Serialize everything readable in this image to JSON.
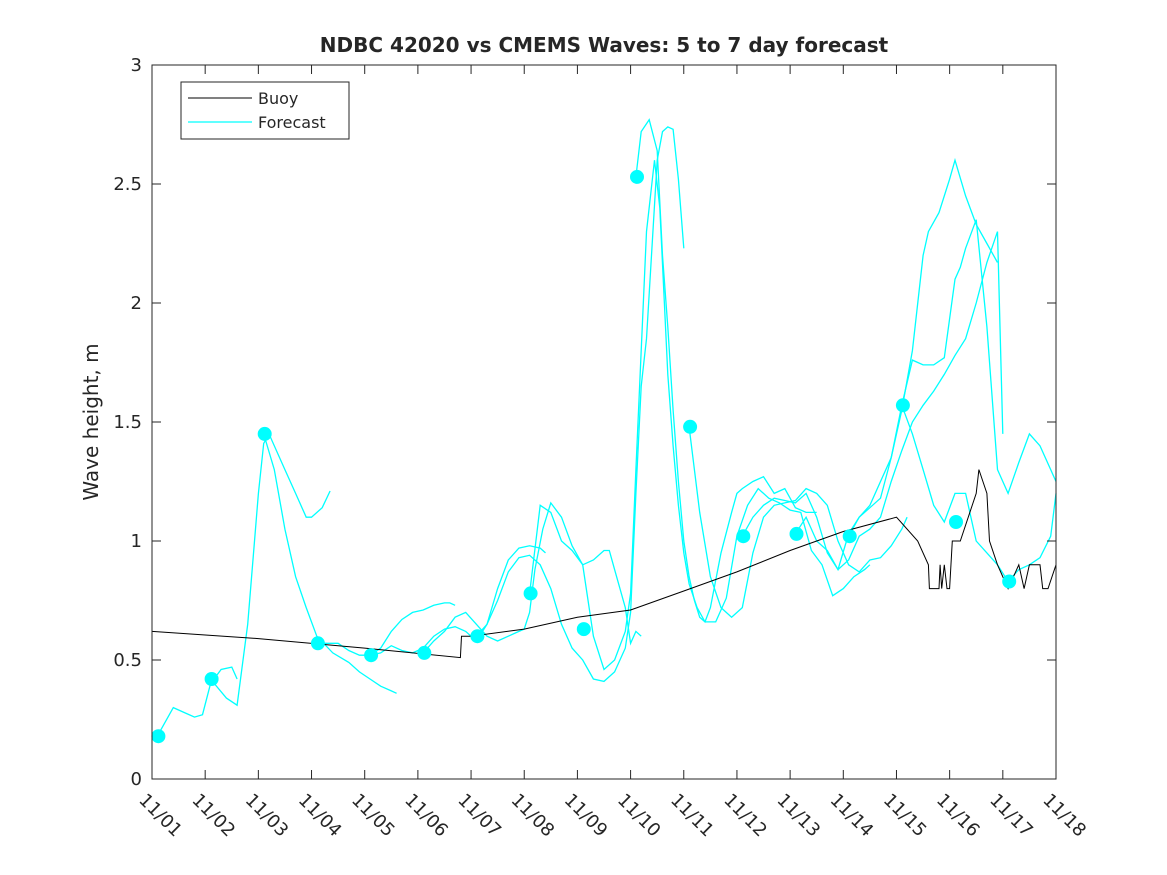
{
  "chart_data": {
    "type": "line",
    "title": "NDBC 42020 vs CMEMS Waves: 5 to 7 day forecast",
    "xlabel": "",
    "ylabel": "Wave height, m",
    "xlim": [
      0,
      17
    ],
    "ylim": [
      0,
      3
    ],
    "x_tick_values": [
      0,
      1,
      2,
      3,
      4,
      5,
      6,
      7,
      8,
      9,
      10,
      11,
      12,
      13,
      14,
      15,
      16,
      17
    ],
    "x_tick_labels": [
      "11/01",
      "11/02",
      "11/03",
      "11/04",
      "11/05",
      "11/06",
      "11/07",
      "11/08",
      "11/09",
      "11/10",
      "11/11",
      "11/12",
      "11/13",
      "11/14",
      "11/15",
      "11/16",
      "11/17",
      "11/18"
    ],
    "y_tick_values": [
      0,
      0.5,
      1,
      1.5,
      2,
      2.5,
      3
    ],
    "y_tick_labels": [
      "0",
      "0.5",
      "1",
      "1.5",
      "2",
      "2.5",
      "3"
    ],
    "x_unit": "days since 11/01",
    "legend": {
      "location": "top-left",
      "entries": [
        {
          "label": "Buoy",
          "color": "#000000"
        },
        {
          "label": "Forecast",
          "color": "#00ffff"
        }
      ]
    },
    "series": [
      {
        "name": "Buoy",
        "color": "#000000",
        "x": [
          0,
          2,
          4,
          5.8,
          5.82,
          6,
          7,
          8,
          9,
          10,
          11,
          12,
          13,
          14,
          14.4,
          14.6,
          14.62,
          14.8,
          14.82,
          14.85,
          14.9,
          14.95,
          15.0,
          15.05,
          15.2,
          15.5,
          15.55,
          15.7,
          15.75,
          15.9,
          16.1,
          16.3,
          16.4,
          16.5,
          16.6,
          16.7,
          16.75,
          16.85,
          17.0
        ],
        "y": [
          0.62,
          0.59,
          0.55,
          0.51,
          0.6,
          0.6,
          0.63,
          0.68,
          0.71,
          0.79,
          0.87,
          0.96,
          1.04,
          1.1,
          1.0,
          0.9,
          0.8,
          0.8,
          0.9,
          0.8,
          0.9,
          0.8,
          0.8,
          1.0,
          1.0,
          1.2,
          1.3,
          1.2,
          1.0,
          0.9,
          0.8,
          0.9,
          0.8,
          0.9,
          0.9,
          0.9,
          0.8,
          0.8,
          0.9
        ]
      }
    ],
    "forecasts": [
      {
        "x": [
          0.1,
          0.4,
          0.6,
          0.8,
          0.95,
          1.1,
          1.3,
          1.5,
          1.6
        ],
        "y": [
          0.18,
          0.3,
          0.28,
          0.26,
          0.27,
          0.4,
          0.46,
          0.47,
          0.42
        ]
      },
      {
        "x": [
          1.1,
          1.4,
          1.6,
          1.8,
          2.0,
          2.1,
          2.2,
          2.5,
          2.7,
          2.9,
          3.0,
          3.2,
          3.35
        ],
        "y": [
          0.42,
          0.34,
          0.31,
          0.65,
          1.2,
          1.41,
          1.45,
          1.3,
          1.2,
          1.1,
          1.1,
          1.14,
          1.21
        ]
      },
      {
        "x": [
          2.1,
          2.3,
          2.5,
          2.7,
          2.9,
          3.1,
          3.4,
          3.7,
          3.9,
          4.1,
          4.3,
          4.5,
          4.6
        ],
        "y": [
          1.45,
          1.3,
          1.05,
          0.85,
          0.72,
          0.6,
          0.53,
          0.49,
          0.45,
          0.42,
          0.39,
          0.37,
          0.36
        ]
      },
      {
        "x": [
          3.1,
          3.3,
          3.5,
          3.7,
          3.9,
          4.1,
          4.3,
          4.5,
          4.7,
          4.9,
          5.1,
          5.3,
          5.5,
          5.6,
          5.7
        ],
        "y": [
          0.57,
          0.57,
          0.57,
          0.54,
          0.52,
          0.52,
          0.55,
          0.62,
          0.67,
          0.7,
          0.71,
          0.73,
          0.74,
          0.74,
          0.73
        ]
      },
      {
        "x": [
          4.1,
          4.3,
          4.5,
          4.7,
          4.9,
          5.1,
          5.3,
          5.5,
          5.7,
          5.9,
          6.1,
          6.3,
          6.5,
          6.7,
          6.9,
          7.1,
          7.3,
          7.4
        ],
        "y": [
          0.52,
          0.53,
          0.56,
          0.54,
          0.53,
          0.55,
          0.6,
          0.63,
          0.64,
          0.62,
          0.58,
          0.65,
          0.8,
          0.92,
          0.97,
          0.98,
          0.97,
          0.95
        ]
      },
      {
        "x": [
          5.1,
          5.3,
          5.5,
          5.7,
          5.9,
          6.1,
          6.3,
          6.5,
          6.7,
          6.9,
          7.0,
          7.1,
          7.2,
          7.35,
          7.5,
          7.7,
          7.9,
          8.1,
          8.3,
          8.5,
          8.6,
          8.7,
          8.9,
          9.0,
          9.1,
          9.2
        ],
        "y": [
          0.53,
          0.58,
          0.62,
          0.68,
          0.7,
          0.65,
          0.6,
          0.58,
          0.6,
          0.62,
          0.63,
          0.7,
          0.88,
          1.05,
          1.16,
          1.1,
          0.98,
          0.9,
          0.92,
          0.96,
          0.96,
          0.88,
          0.72,
          0.57,
          0.62,
          0.6
        ]
      },
      {
        "x": [
          6.1,
          6.3,
          6.5,
          6.7,
          6.9,
          7.1,
          7.3,
          7.5,
          7.7,
          7.9,
          8.1,
          8.3,
          8.5,
          8.7,
          8.9,
          9.0,
          9.1,
          9.2,
          9.3,
          9.5,
          9.6,
          9.7,
          9.8,
          9.9,
          10.0
        ],
        "y": [
          0.6,
          0.65,
          0.75,
          0.87,
          0.93,
          0.94,
          0.9,
          0.8,
          0.65,
          0.55,
          0.5,
          0.42,
          0.41,
          0.45,
          0.55,
          0.7,
          1.2,
          1.65,
          1.85,
          2.6,
          2.72,
          2.74,
          2.73,
          2.52,
          2.23
        ]
      },
      {
        "x": [
          7.1,
          7.3,
          7.5,
          7.7,
          7.9,
          8.1,
          8.3,
          8.5,
          8.7,
          8.9,
          9.0,
          9.1,
          9.2,
          9.3,
          9.45,
          9.55,
          9.7,
          9.8,
          9.9,
          10.0,
          10.1,
          10.25,
          10.4,
          10.6,
          10.8,
          11.0,
          11.2,
          11.4,
          11.6,
          11.8,
          12.0,
          12.2,
          12.4,
          12.6,
          12.8,
          13.0,
          13.2,
          13.4,
          13.5
        ],
        "y": [
          0.78,
          1.15,
          1.12,
          1.0,
          0.96,
          0.9,
          0.6,
          0.46,
          0.5,
          0.62,
          0.78,
          1.3,
          1.8,
          2.3,
          2.6,
          2.4,
          1.7,
          1.4,
          1.15,
          0.95,
          0.82,
          0.72,
          0.66,
          0.66,
          0.76,
          1.02,
          1.15,
          1.22,
          1.18,
          1.16,
          1.13,
          1.12,
          0.96,
          0.9,
          0.77,
          0.8,
          0.85,
          0.88,
          0.9
        ]
      },
      {
        "x": [
          9.1,
          9.2,
          9.35,
          9.5,
          9.6,
          9.7,
          9.8,
          9.9,
          10.0,
          10.1,
          10.2,
          10.3,
          10.4,
          10.5,
          10.7,
          10.9,
          11.0,
          11.1,
          11.3,
          11.5,
          11.7,
          11.9,
          12.1,
          12.3,
          12.5
        ],
        "y": [
          2.53,
          2.72,
          2.77,
          2.64,
          2.2,
          1.9,
          1.55,
          1.25,
          1.0,
          0.85,
          0.75,
          0.68,
          0.66,
          0.72,
          0.95,
          1.12,
          1.2,
          1.22,
          1.25,
          1.27,
          1.2,
          1.22,
          1.14,
          1.12,
          1.12
        ]
      },
      {
        "x": [
          10.1,
          10.3,
          10.5,
          10.7,
          10.9,
          11.1,
          11.3,
          11.5,
          11.7,
          11.9,
          12.1,
          12.3,
          12.5,
          12.7,
          12.9,
          13.1,
          13.3,
          13.5,
          13.7,
          13.9,
          14.1,
          14.2
        ],
        "y": [
          1.48,
          1.12,
          0.85,
          0.72,
          0.68,
          0.72,
          0.95,
          1.1,
          1.15,
          1.16,
          1.17,
          1.22,
          1.2,
          1.15,
          1.0,
          0.9,
          0.87,
          0.92,
          0.93,
          0.98,
          1.05,
          1.1
        ]
      },
      {
        "x": [
          11.1,
          11.3,
          11.5,
          11.7,
          11.9,
          12.1,
          12.3,
          12.5,
          12.7,
          12.9,
          13.1,
          13.3,
          13.5,
          13.7,
          13.9,
          14.1,
          14.3,
          14.5,
          14.6,
          14.8,
          15.0,
          15.1,
          15.3,
          15.5,
          15.7,
          15.9
        ],
        "y": [
          1.02,
          1.1,
          1.15,
          1.18,
          1.17,
          1.16,
          1.2,
          1.1,
          0.95,
          0.88,
          1.03,
          1.1,
          1.14,
          1.18,
          1.35,
          1.55,
          1.8,
          2.2,
          2.3,
          2.38,
          2.52,
          2.6,
          2.45,
          2.33,
          2.25,
          2.17
        ]
      },
      {
        "x": [
          12.1,
          12.3,
          12.5,
          12.7,
          12.9,
          13.1,
          13.3,
          13.5,
          13.7,
          13.9,
          14.1,
          14.3,
          14.5,
          14.7,
          14.9,
          15.1,
          15.3,
          15.5,
          15.7,
          15.9,
          16.0
        ],
        "y": [
          1.03,
          1.1,
          1.0,
          0.96,
          0.88,
          0.92,
          1.02,
          1.05,
          1.1,
          1.25,
          1.38,
          1.5,
          1.57,
          1.63,
          1.7,
          1.78,
          1.85,
          2.0,
          2.17,
          2.3,
          1.45
        ]
      },
      {
        "x": [
          13.1,
          13.3,
          13.5,
          13.7,
          13.9,
          14.1,
          14.3,
          14.5,
          14.7,
          14.9,
          15.1,
          15.2,
          15.3,
          15.5,
          15.7,
          15.9,
          16.1,
          16.3,
          16.5,
          16.7,
          16.9,
          17.0
        ],
        "y": [
          1.02,
          1.1,
          1.15,
          1.25,
          1.35,
          1.57,
          1.76,
          1.74,
          1.74,
          1.77,
          2.1,
          2.15,
          2.23,
          2.35,
          1.9,
          1.3,
          1.2,
          1.33,
          1.45,
          1.4,
          1.3,
          1.25
        ]
      },
      {
        "x": [
          14.1,
          14.3,
          14.5,
          14.7,
          14.9,
          15.1,
          15.3,
          15.5,
          15.7,
          15.9,
          16.1,
          16.3,
          16.5,
          16.7,
          16.9,
          17.0
        ],
        "y": [
          1.57,
          1.45,
          1.3,
          1.15,
          1.08,
          1.2,
          1.2,
          1.0,
          0.95,
          0.9,
          0.83,
          0.88,
          0.9,
          0.93,
          1.02,
          1.2
        ]
      }
    ],
    "forecast_start_markers": {
      "x": [
        0.12,
        1.12,
        2.12,
        3.12,
        4.12,
        5.12,
        6.12,
        7.12,
        8.12,
        9.12,
        10.12,
        11.12,
        12.12,
        13.12,
        14.12,
        15.12,
        16.12
      ],
      "y": [
        0.18,
        0.42,
        1.45,
        0.57,
        0.52,
        0.53,
        0.6,
        0.78,
        0.63,
        2.53,
        1.48,
        1.02,
        1.03,
        1.02,
        1.57,
        1.08,
        0.83
      ]
    }
  }
}
